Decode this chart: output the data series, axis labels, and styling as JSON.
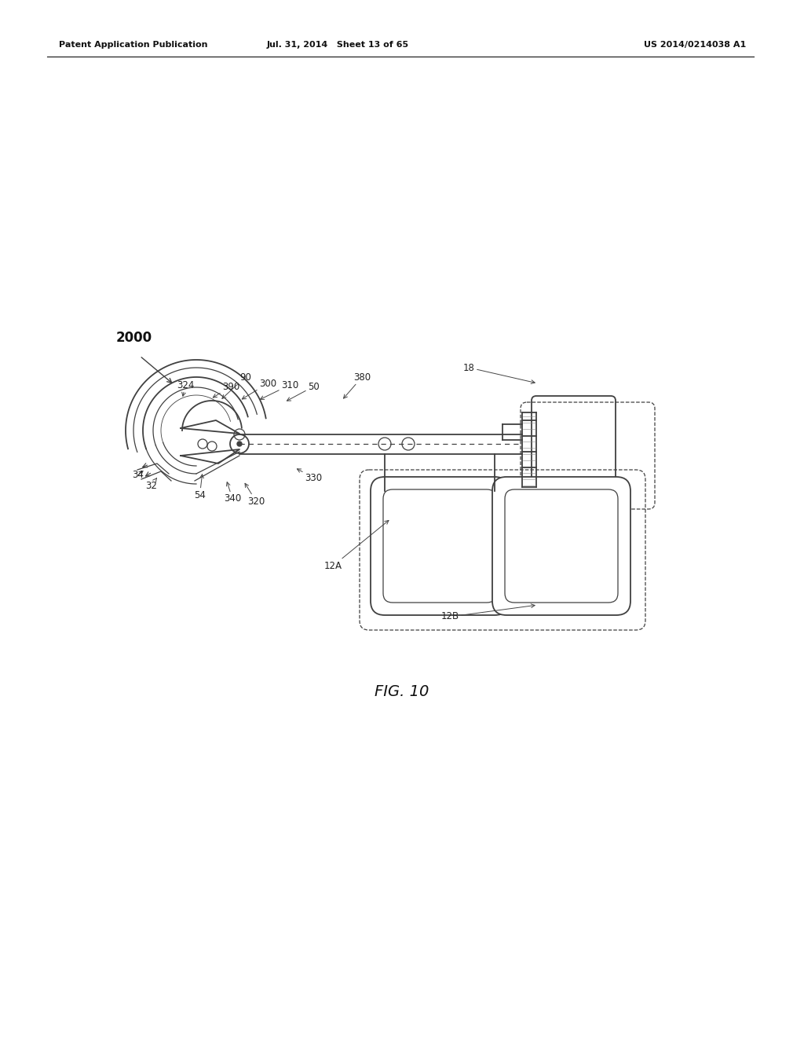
{
  "bg_color": "#ffffff",
  "header_left": "Patent Application Publication",
  "header_mid": "Jul. 31, 2014   Sheet 13 of 65",
  "header_right": "US 2014/0214038 A1",
  "figure_label": "FIG. 10",
  "line_color": "#404040",
  "gray_color": "#888888"
}
